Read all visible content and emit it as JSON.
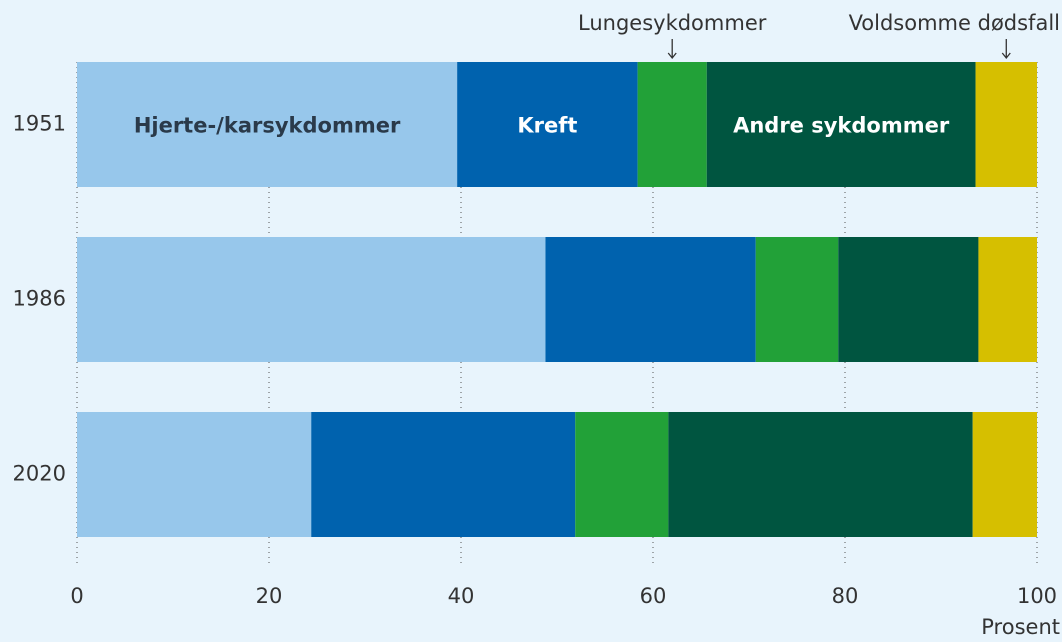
{
  "chart_data": {
    "type": "stacked_bar_horizontal",
    "categories": [
      "1951",
      "1986",
      "2020"
    ],
    "series": [
      {
        "name": "Hjerte-/karsykdommer",
        "color": "#97c7eb",
        "values": [
          39.6,
          48.8,
          24.4
        ]
      },
      {
        "name": "Kreft",
        "color": "#0062ae",
        "values": [
          18.8,
          21.9,
          27.5
        ]
      },
      {
        "name": "Lungesykdommer",
        "color": "#22a138",
        "values": [
          7.2,
          8.6,
          9.7
        ]
      },
      {
        "name": "Andre sykdommer",
        "color": "#005540",
        "values": [
          28.0,
          14.6,
          31.7
        ]
      },
      {
        "name": "Voldsomme dødsfall",
        "color": "#d6bf00",
        "values": [
          6.4,
          6.1,
          6.7
        ]
      }
    ],
    "xlabel": "Prosent",
    "xlim": [
      0,
      100
    ],
    "xticks": [
      0,
      20,
      40,
      60,
      80,
      100
    ],
    "grid": true
  }
}
